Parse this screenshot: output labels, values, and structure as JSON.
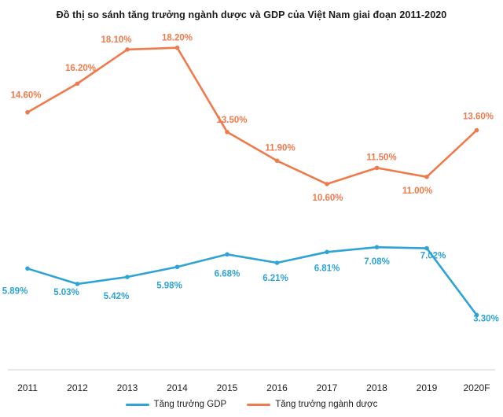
{
  "chart_data": {
    "type": "line",
    "title": "Đồ thị so sánh tăng trưởng ngành dược và GDP của Việt Nam giai đoạn 2011-2020",
    "categories": [
      "2011",
      "2012",
      "2013",
      "2014",
      "2015",
      "2016",
      "2017",
      "2018",
      "2019",
      "2020F"
    ],
    "series": [
      {
        "name": "Tăng trưởng GDP",
        "color": "#2ea3d6",
        "values": [
          5.89,
          5.03,
          5.42,
          5.98,
          6.68,
          6.21,
          6.81,
          7.08,
          7.02,
          3.3
        ],
        "labels": [
          "5.89%",
          "5.03%",
          "5.42%",
          "5.98%",
          "6.68%",
          "6.21%",
          "6.81%",
          "7.08%",
          "7.02%",
          "3.30%"
        ]
      },
      {
        "name": "Tăng trưởng ngành dược",
        "color": "#ef7b4d",
        "values": [
          14.6,
          16.2,
          18.1,
          18.2,
          13.5,
          11.9,
          10.6,
          11.5,
          11.0,
          13.6
        ],
        "labels": [
          "14.60%",
          "16.20%",
          "18.10%",
          "18.20%",
          "13.50%",
          "11.90%",
          "10.60%",
          "11.50%",
          "11.00%",
          "13.60%"
        ]
      }
    ],
    "xlabel": "",
    "ylabel": "",
    "ylim": [
      0,
      20
    ],
    "grid": false,
    "legend_position": "bottom"
  }
}
